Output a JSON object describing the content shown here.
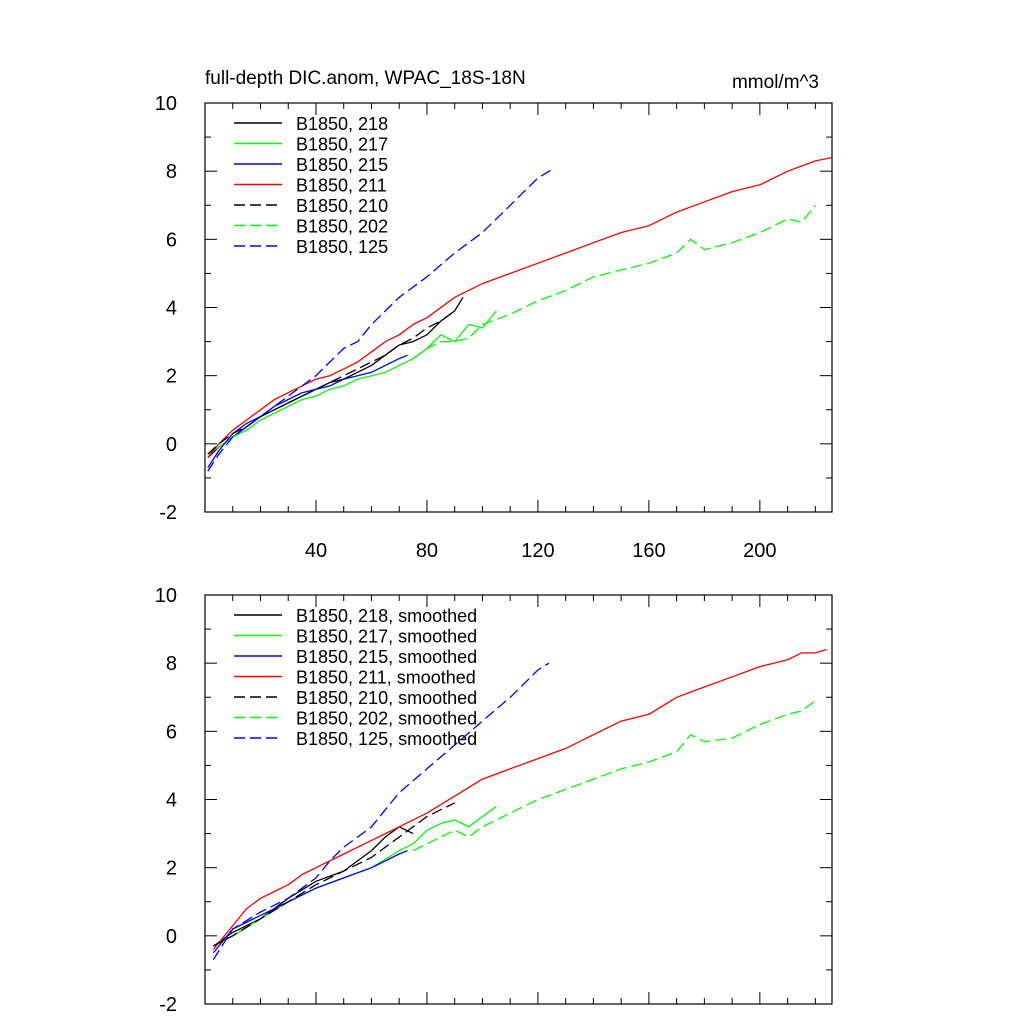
{
  "chart_data": [
    {
      "type": "line",
      "title": "full-depth DIC.anom, WPAC_18S-18N",
      "subtitle": "mmol/m^3",
      "xlabel": "",
      "ylabel": "",
      "xlim": [
        0,
        226
      ],
      "ylim": [
        -2,
        10
      ],
      "x_ticks": [
        "40",
        "80",
        "120",
        "160",
        "200"
      ],
      "y_ticks": [
        "-2",
        "0",
        "2",
        "4",
        "6",
        "8",
        "10"
      ],
      "legend_position": "top-left",
      "grid": false,
      "series": [
        {
          "name": "B1850, 218",
          "color": "#000000",
          "dash": "solid",
          "x": [
            1,
            5,
            10,
            15,
            20,
            25,
            30,
            35,
            40,
            45,
            50,
            55,
            60,
            65,
            70,
            75,
            80,
            85,
            90,
            93
          ],
          "y": [
            -0.4,
            -0.1,
            0.2,
            0.5,
            0.8,
            1.0,
            1.2,
            1.4,
            1.6,
            1.8,
            1.9,
            2.1,
            2.3,
            2.6,
            2.9,
            3.0,
            3.2,
            3.6,
            3.9,
            4.3
          ]
        },
        {
          "name": "B1850, 217",
          "color": "#00ff00",
          "dash": "solid",
          "x": [
            1,
            5,
            10,
            15,
            20,
            25,
            30,
            35,
            40,
            45,
            50,
            55,
            60,
            65,
            70,
            75,
            80,
            85,
            90,
            95,
            100,
            105
          ],
          "y": [
            -0.3,
            -0.1,
            0.2,
            0.4,
            0.7,
            0.9,
            1.1,
            1.3,
            1.4,
            1.6,
            1.7,
            1.9,
            2.0,
            2.1,
            2.3,
            2.5,
            2.8,
            3.2,
            3.0,
            3.5,
            3.4,
            3.9
          ]
        },
        {
          "name": "B1850, 215",
          "color": "#0000ff",
          "dash": "solid",
          "x": [
            1,
            5,
            10,
            15,
            20,
            25,
            30,
            35,
            40,
            45,
            50,
            55,
            60,
            65,
            70,
            73
          ],
          "y": [
            -0.7,
            -0.2,
            0.3,
            0.6,
            0.8,
            1.1,
            1.3,
            1.5,
            1.6,
            1.7,
            1.9,
            2.0,
            2.1,
            2.3,
            2.5,
            2.6
          ]
        },
        {
          "name": "B1850, 211",
          "color": "#ff0000",
          "dash": "solid",
          "x": [
            1,
            5,
            10,
            15,
            20,
            25,
            30,
            35,
            40,
            45,
            50,
            55,
            60,
            65,
            70,
            75,
            80,
            90,
            100,
            110,
            120,
            130,
            140,
            150,
            160,
            170,
            180,
            190,
            200,
            210,
            220,
            226
          ],
          "y": [
            -0.4,
            0.0,
            0.4,
            0.7,
            1.0,
            1.3,
            1.5,
            1.7,
            1.9,
            2.0,
            2.2,
            2.4,
            2.7,
            3.0,
            3.2,
            3.5,
            3.7,
            4.3,
            4.7,
            5.0,
            5.3,
            5.6,
            5.9,
            6.2,
            6.4,
            6.8,
            7.1,
            7.4,
            7.6,
            8.0,
            8.3,
            8.4
          ]
        },
        {
          "name": "B1850, 210",
          "color": "#000000",
          "dash": "dashed",
          "x": [
            1,
            5,
            10,
            15,
            20,
            25,
            30,
            35,
            40,
            45,
            50,
            55,
            60,
            65,
            70,
            75,
            80,
            85,
            90
          ],
          "y": [
            -0.3,
            0.0,
            0.3,
            0.5,
            0.8,
            1.0,
            1.2,
            1.4,
            1.6,
            1.8,
            2.0,
            2.2,
            2.4,
            2.6,
            2.9,
            3.1,
            3.4,
            3.6,
            3.9
          ]
        },
        {
          "name": "B1850, 202",
          "color": "#00ff00",
          "dash": "dashed",
          "x": [
            75,
            80,
            85,
            90,
            95,
            100,
            110,
            120,
            130,
            140,
            150,
            160,
            170,
            175,
            180,
            190,
            200,
            210,
            215,
            220
          ],
          "y": [
            2.5,
            2.8,
            3.0,
            3.0,
            3.1,
            3.5,
            3.8,
            4.2,
            4.5,
            4.9,
            5.1,
            5.3,
            5.6,
            6.0,
            5.7,
            5.9,
            6.2,
            6.6,
            6.5,
            7.0
          ]
        },
        {
          "name": "B1850, 125",
          "color": "#0000ff",
          "dash": "dashed",
          "x": [
            1,
            5,
            10,
            15,
            20,
            25,
            30,
            35,
            40,
            45,
            50,
            55,
            60,
            65,
            70,
            80,
            90,
            100,
            110,
            120,
            126
          ],
          "y": [
            -0.8,
            -0.3,
            0.2,
            0.5,
            0.8,
            1.1,
            1.4,
            1.7,
            2.0,
            2.4,
            2.8,
            3.0,
            3.5,
            3.9,
            4.3,
            4.9,
            5.6,
            6.2,
            7.0,
            7.8,
            8.1
          ]
        }
      ]
    },
    {
      "type": "line",
      "title": "",
      "xlabel": "",
      "ylabel": "",
      "xlim": [
        0,
        226
      ],
      "ylim": [
        -2,
        10
      ],
      "y_ticks": [
        "-2",
        "0",
        "2",
        "4",
        "6",
        "8",
        "10"
      ],
      "legend_position": "top-left",
      "grid": false,
      "series": [
        {
          "name": "B1850, 218, smoothed",
          "color": "#000000",
          "dash": "solid",
          "x": [
            3,
            10,
            20,
            30,
            40,
            50,
            60,
            65,
            70,
            75
          ],
          "y": [
            -0.3,
            0.1,
            0.5,
            1.1,
            1.6,
            1.9,
            2.5,
            2.9,
            3.2,
            3.0
          ]
        },
        {
          "name": "B1850, 217, smoothed",
          "color": "#00ff00",
          "dash": "solid",
          "x": [
            3,
            10,
            20,
            30,
            40,
            50,
            60,
            70,
            75,
            80,
            85,
            90,
            95,
            100,
            105
          ],
          "y": [
            -0.3,
            0.0,
            0.5,
            1.0,
            1.4,
            1.7,
            2.0,
            2.5,
            2.7,
            3.1,
            3.3,
            3.4,
            3.2,
            3.5,
            3.8
          ]
        },
        {
          "name": "B1850, 215, smoothed",
          "color": "#0000ff",
          "dash": "solid",
          "x": [
            3,
            10,
            20,
            30,
            40,
            50,
            60,
            70,
            73
          ],
          "y": [
            -0.5,
            0.2,
            0.6,
            1.0,
            1.4,
            1.7,
            2.0,
            2.4,
            2.5
          ]
        },
        {
          "name": "B1850, 211, smoothed",
          "color": "#ff0000",
          "dash": "solid",
          "x": [
            3,
            10,
            15,
            20,
            25,
            30,
            35,
            40,
            50,
            60,
            70,
            80,
            90,
            100,
            110,
            120,
            130,
            140,
            150,
            160,
            170,
            180,
            190,
            200,
            210,
            215,
            220,
            224
          ],
          "y": [
            -0.4,
            0.3,
            0.8,
            1.1,
            1.3,
            1.5,
            1.8,
            2.0,
            2.4,
            2.8,
            3.2,
            3.6,
            4.1,
            4.6,
            4.9,
            5.2,
            5.5,
            5.9,
            6.3,
            6.5,
            7.0,
            7.3,
            7.6,
            7.9,
            8.1,
            8.3,
            8.3,
            8.4
          ]
        },
        {
          "name": "B1850, 210, smoothed",
          "color": "#000000",
          "dash": "dashed",
          "x": [
            3,
            10,
            20,
            30,
            40,
            50,
            60,
            65,
            70,
            75,
            80,
            85,
            90
          ],
          "y": [
            -0.3,
            0.0,
            0.5,
            1.0,
            1.5,
            1.9,
            2.3,
            2.6,
            2.9,
            3.2,
            3.5,
            3.7,
            3.9
          ]
        },
        {
          "name": "B1850, 202, smoothed",
          "color": "#00ff00",
          "dash": "dashed",
          "x": [
            75,
            80,
            85,
            90,
            95,
            100,
            110,
            120,
            130,
            140,
            150,
            160,
            170,
            175,
            180,
            190,
            200,
            210,
            215,
            220
          ],
          "y": [
            2.5,
            2.7,
            2.9,
            3.1,
            2.9,
            3.2,
            3.6,
            4.0,
            4.3,
            4.6,
            4.9,
            5.1,
            5.4,
            5.9,
            5.7,
            5.8,
            6.2,
            6.5,
            6.6,
            6.9
          ]
        },
        {
          "name": "B1850, 125, smoothed",
          "color": "#0000ff",
          "dash": "dashed",
          "x": [
            3,
            10,
            20,
            30,
            40,
            45,
            50,
            55,
            60,
            65,
            70,
            80,
            90,
            100,
            110,
            120,
            124
          ],
          "y": [
            -0.7,
            0.2,
            0.7,
            1.1,
            1.7,
            2.2,
            2.6,
            2.9,
            3.2,
            3.7,
            4.2,
            4.9,
            5.6,
            6.3,
            7.0,
            7.8,
            8.0
          ]
        }
      ]
    }
  ]
}
